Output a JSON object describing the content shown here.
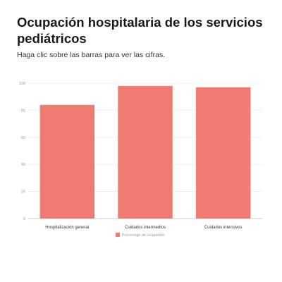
{
  "header": {
    "title": "Ocupación hospitalaria de los servicios pediátricos",
    "subtitle": "Haga clic sobre las barras para ver las cifras."
  },
  "chart_data": {
    "type": "bar",
    "title": "Ocupación hospitalaria de los servicios pediátricos",
    "categories": [
      "Hospitalización general",
      "Cuidados intermedios",
      "Cuidados intensivos"
    ],
    "series": [
      {
        "name": "Porcentaje de ocupación",
        "values": [
          84,
          98,
          97
        ],
        "color": "#f07b72"
      }
    ],
    "yticks": [
      0,
      20,
      40,
      60,
      80,
      100
    ],
    "ylim": [
      0,
      100
    ],
    "xlabel": "",
    "ylabel": "",
    "grid": true,
    "legend": "bottom-center"
  }
}
